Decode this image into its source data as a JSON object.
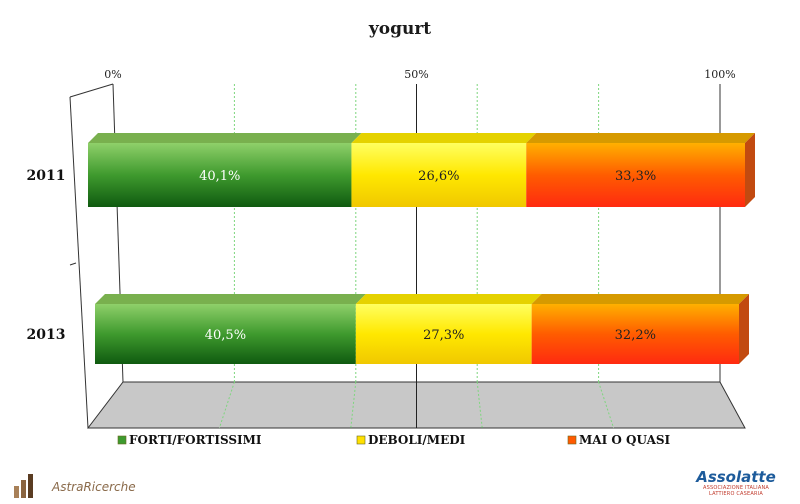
{
  "chart_data": {
    "type": "bar",
    "orientation": "horizontal",
    "stacked": true,
    "percent_stacked": true,
    "title": "yogurt",
    "categories": [
      "2011",
      "2013"
    ],
    "series": [
      {
        "name": "FORTI/FORTISSIMI",
        "values": [
          40.1,
          40.5
        ],
        "labels": [
          "40,1%",
          "40,5%"
        ],
        "color": "#3d9a2e"
      },
      {
        "name": "DEBOLI/MEDI",
        "values": [
          26.6,
          27.3
        ],
        "labels": [
          "26,6%",
          "27,3%"
        ],
        "color": "#ffe500"
      },
      {
        "name": "MAI O QUASI",
        "values": [
          33.3,
          32.2
        ],
        "labels": [
          "33,3%",
          "32,2%"
        ],
        "color": "#ff4a0a"
      }
    ],
    "axis": {
      "min": 0,
      "max": 100,
      "ticks": [
        0,
        50,
        100
      ],
      "tick_labels": [
        "0%",
        "50%",
        "100%"
      ],
      "position": "top"
    },
    "grid": true,
    "legend_position": "bottom"
  },
  "logos": {
    "left": "AstraRicerche",
    "right_name": "Assolatte",
    "right_sub_1": "ASSOCIAZIONE ITALIANA",
    "right_sub_2": "LATTIERO CASEARIA"
  }
}
